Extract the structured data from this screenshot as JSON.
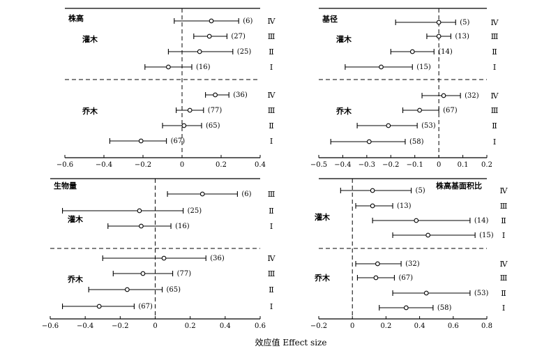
{
  "xlabel": "效应值 Effect size",
  "chart_data": [
    {
      "type": "forest",
      "title": "株高",
      "xlim": [
        -0.6,
        0.4
      ],
      "xticks": [
        -0.6,
        -0.4,
        -0.2,
        0,
        0.2,
        0.4
      ],
      "xtick_labels": [
        "−0.6",
        "−0.4",
        "−0.2",
        "0",
        "0.2",
        "0.4"
      ],
      "groups": [
        {
          "name": "灌木",
          "rows": [
            {
              "level": "Ⅳ",
              "mean": 0.15,
              "lower": -0.04,
              "upper": 0.29,
              "n": "(6)"
            },
            {
              "level": "Ⅲ",
              "mean": 0.14,
              "lower": 0.06,
              "upper": 0.23,
              "n": "(27)"
            },
            {
              "level": "Ⅱ",
              "mean": 0.09,
              "lower": -0.07,
              "upper": 0.26,
              "n": "(25)"
            },
            {
              "level": "Ⅰ",
              "mean": -0.07,
              "lower": -0.19,
              "upper": 0.05,
              "n": "(16)"
            }
          ]
        },
        {
          "name": "乔木",
          "rows": [
            {
              "level": "Ⅳ",
              "mean": 0.17,
              "lower": 0.12,
              "upper": 0.24,
              "n": "(36)"
            },
            {
              "level": "Ⅲ",
              "mean": 0.04,
              "lower": -0.03,
              "upper": 0.11,
              "n": "(77)"
            },
            {
              "level": "Ⅱ",
              "mean": 0.01,
              "lower": -0.1,
              "upper": 0.1,
              "n": "(65)"
            },
            {
              "level": "Ⅰ",
              "mean": -0.21,
              "lower": -0.37,
              "upper": -0.08,
              "n": "(67)"
            }
          ]
        }
      ]
    },
    {
      "type": "forest",
      "title": "基径",
      "xlim": [
        -0.5,
        0.2
      ],
      "xticks": [
        -0.5,
        -0.4,
        -0.3,
        -0.2,
        -0.1,
        0,
        0.1,
        0.2
      ],
      "xtick_labels": [
        "−0.5",
        "−0.4",
        "−0.3",
        "−0.2",
        "−0.1",
        "0",
        "0.1",
        "0.2"
      ],
      "groups": [
        {
          "name": "灌木",
          "rows": [
            {
              "level": "Ⅳ",
              "mean": 0.0,
              "lower": -0.18,
              "upper": 0.07,
              "n": "(5)"
            },
            {
              "level": "Ⅲ",
              "mean": 0.0,
              "lower": -0.05,
              "upper": 0.05,
              "n": "(13)"
            },
            {
              "level": "Ⅱ",
              "mean": -0.11,
              "lower": -0.2,
              "upper": -0.02,
              "n": "(14)"
            },
            {
              "level": "Ⅰ",
              "mean": -0.24,
              "lower": -0.39,
              "upper": -0.11,
              "n": "(15)"
            }
          ]
        },
        {
          "name": "乔木",
          "rows": [
            {
              "level": "Ⅳ",
              "mean": 0.02,
              "lower": -0.07,
              "upper": 0.09,
              "n": "(32)"
            },
            {
              "level": "Ⅲ",
              "mean": -0.08,
              "lower": -0.15,
              "upper": 0.0,
              "n": "(67)"
            },
            {
              "level": "Ⅱ",
              "mean": -0.21,
              "lower": -0.34,
              "upper": -0.09,
              "n": "(53)"
            },
            {
              "level": "Ⅰ",
              "mean": -0.29,
              "lower": -0.45,
              "upper": -0.14,
              "n": "(58)"
            }
          ]
        }
      ]
    },
    {
      "type": "forest",
      "title": "生物量",
      "xlim": [
        -0.6,
        0.6
      ],
      "xticks": [
        -0.6,
        -0.4,
        -0.2,
        0,
        0.2,
        0.4,
        0.6
      ],
      "xtick_labels": [
        "−0.6",
        "−0.4",
        "−0.2",
        "0",
        "0.2",
        "0.4",
        "0.6"
      ],
      "groups": [
        {
          "name": "灌木",
          "rows": [
            {
              "level": "Ⅲ",
              "mean": 0.27,
              "lower": 0.07,
              "upper": 0.47,
              "n": "(6)"
            },
            {
              "level": "Ⅱ",
              "mean": -0.09,
              "lower": -0.53,
              "upper": 0.16,
              "n": "(25)"
            },
            {
              "level": "Ⅰ",
              "mean": -0.08,
              "lower": -0.27,
              "upper": 0.09,
              "n": "(16)"
            }
          ]
        },
        {
          "name": "乔木",
          "rows": [
            {
              "level": "Ⅳ",
              "mean": 0.05,
              "lower": -0.3,
              "upper": 0.29,
              "n": "(36)"
            },
            {
              "level": "Ⅲ",
              "mean": -0.07,
              "lower": -0.24,
              "upper": 0.1,
              "n": "(77)"
            },
            {
              "level": "Ⅱ",
              "mean": -0.16,
              "lower": -0.38,
              "upper": 0.04,
              "n": "(65)"
            },
            {
              "level": "Ⅰ",
              "mean": -0.32,
              "lower": -0.53,
              "upper": -0.12,
              "n": "(67)"
            }
          ]
        }
      ]
    },
    {
      "type": "forest",
      "title": "株高基面积比",
      "xlim": [
        -0.2,
        0.8
      ],
      "xticks": [
        -0.2,
        0,
        0.2,
        0.4,
        0.6,
        0.8
      ],
      "xtick_labels": [
        "−0.2",
        "0",
        "0.2",
        "0.4",
        "0.6",
        "0.8"
      ],
      "groups": [
        {
          "name": "灌木",
          "rows": [
            {
              "level": "Ⅳ",
              "mean": 0.12,
              "lower": -0.07,
              "upper": 0.35,
              "n": "(5)"
            },
            {
              "level": "Ⅲ",
              "mean": 0.12,
              "lower": 0.02,
              "upper": 0.24,
              "n": "(13)"
            },
            {
              "level": "Ⅱ",
              "mean": 0.38,
              "lower": 0.12,
              "upper": 0.7,
              "n": "(14)"
            },
            {
              "level": "Ⅰ",
              "mean": 0.45,
              "lower": 0.24,
              "upper": 0.73,
              "n": "(15)"
            }
          ]
        },
        {
          "name": "乔木",
          "rows": [
            {
              "level": "Ⅳ",
              "mean": 0.15,
              "lower": 0.02,
              "upper": 0.29,
              "n": "(32)"
            },
            {
              "level": "Ⅲ",
              "mean": 0.14,
              "lower": 0.03,
              "upper": 0.25,
              "n": "(67)"
            },
            {
              "level": "Ⅱ",
              "mean": 0.44,
              "lower": 0.24,
              "upper": 0.7,
              "n": "(53)"
            },
            {
              "level": "Ⅰ",
              "mean": 0.32,
              "lower": 0.16,
              "upper": 0.48,
              "n": "(58)"
            }
          ]
        }
      ]
    }
  ]
}
